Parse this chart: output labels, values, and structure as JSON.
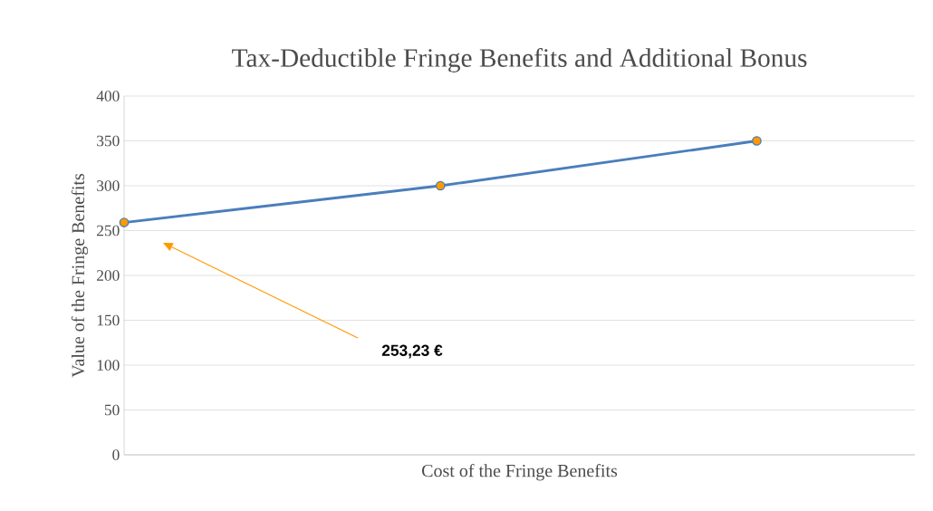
{
  "chart_data": {
    "type": "line",
    "title": "Tax-Deductible Fringe Benefits and Additional Bonus",
    "xlabel": "Cost of the Fringe Benefits",
    "ylabel": "Value of the Fringe Benefits",
    "categories": [
      null,
      null,
      null
    ],
    "series": [
      {
        "color": "#4a7ebb",
        "values": [
          259,
          300,
          350
        ]
      }
    ],
    "ylim": [
      0,
      400
    ],
    "yticks": [
      0,
      50,
      100,
      150,
      200,
      250,
      300,
      350,
      400
    ],
    "grid": "y",
    "marker": "circle",
    "line_style": "solid",
    "annotations": [
      "253,23 €"
    ]
  }
}
